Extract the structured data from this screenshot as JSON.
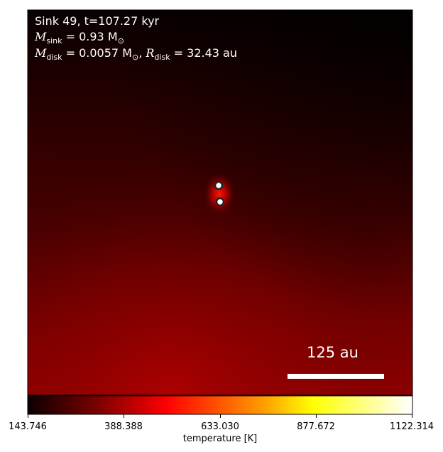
{
  "annotation": {
    "sink_label": "Sink 49, t=107.27 kyr",
    "m_sink_symbol": "M",
    "m_sink_sub": "sink",
    "m_sink_value": " = 0.93 M",
    "m_sink_sun": "⊙",
    "m_disk_symbol": "M",
    "m_disk_sub": "disk",
    "m_disk_value": " = 0.0057 M",
    "m_disk_sun": "⊙",
    "separator": ", ",
    "r_disk_symbol": "R",
    "r_disk_sub": "disk",
    "r_disk_value": " = 32.43 au"
  },
  "scale_bar": {
    "label": "125 au"
  },
  "colorbar": {
    "label": "temperature [K]",
    "ticks": [
      "143.746",
      "388.388",
      "633.030",
      "877.672",
      "1122.314"
    ],
    "colormap": "hot",
    "min": 143.746,
    "max": 1122.314
  },
  "colors": {
    "frame": "#000000",
    "text": "#ffffff",
    "scale_bar": "#ffffff"
  }
}
